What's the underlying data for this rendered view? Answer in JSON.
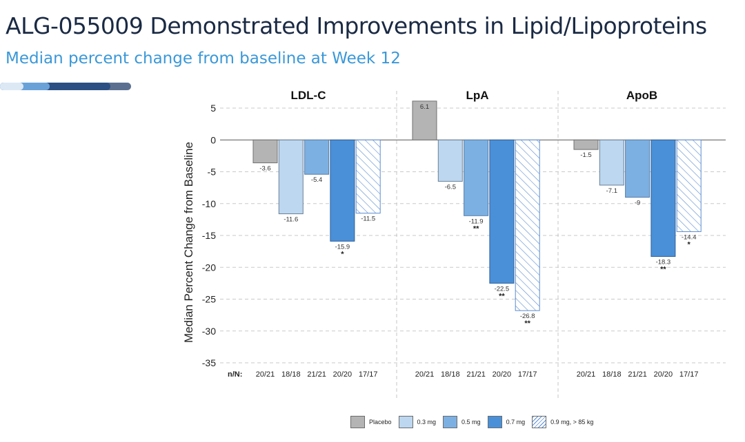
{
  "header": {
    "title": "ALG-055009 Demonstrated Improvements in Lipid/Lipoproteins",
    "subtitle": "Median percent change from baseline at Week 12"
  },
  "colors": {
    "placebo": "#b4b4b4",
    "dose_03": "#bcd7ef",
    "dose_05": "#7cb0e2",
    "dose_07": "#4a90d9",
    "hatch": "#5a8cd0",
    "title": "#1a2a44",
    "subtitle": "#3a98d8"
  },
  "chart_data": {
    "type": "bar",
    "ylabel": "Median Percent Change from Baseline",
    "ylim": [
      -35,
      5
    ],
    "yticks": [
      5,
      0,
      -5,
      -10,
      -15,
      -20,
      -25,
      -30,
      -35
    ],
    "grid": "horizontal dashed",
    "legend_position": "bottom",
    "nn_label": "n/N:",
    "series": [
      {
        "name": "Placebo",
        "color": "#b4b4b4",
        "pattern": "solid"
      },
      {
        "name": "0.3 mg",
        "color": "#bcd7ef",
        "pattern": "solid"
      },
      {
        "name": "0.5 mg",
        "color": "#7cb0e2",
        "pattern": "solid"
      },
      {
        "name": "0.7 mg",
        "color": "#4a90d9",
        "pattern": "solid"
      },
      {
        "name": "0.9 mg, > 85 kg",
        "color": "#ffffff",
        "pattern": "hatch"
      }
    ],
    "panels": [
      {
        "title": "LDL-C",
        "values": [
          -3.6,
          -11.6,
          -5.4,
          -15.9,
          -11.5
        ],
        "labels": [
          "-3.6",
          "-11.6",
          "-5.4",
          "-15.9",
          "-11.5"
        ],
        "significance": [
          "",
          "",
          "",
          "*",
          ""
        ],
        "nn": [
          "20/21",
          "18/18",
          "21/21",
          "20/20",
          "17/17"
        ]
      },
      {
        "title": "LpA",
        "values": [
          6.1,
          -6.5,
          -11.9,
          -22.5,
          -26.8
        ],
        "labels": [
          "6.1",
          "-6.5",
          "-11.9",
          "-22.5",
          "-26.8"
        ],
        "significance": [
          "",
          "",
          "**",
          "**",
          "**"
        ],
        "nn": [
          "20/21",
          "18/18",
          "21/21",
          "20/20",
          "17/17"
        ]
      },
      {
        "title": "ApoB",
        "values": [
          -1.5,
          -7.1,
          -9,
          -18.3,
          -14.4
        ],
        "labels": [
          "-1.5",
          "-7.1",
          "-9",
          "-18.3",
          "-14.4"
        ],
        "significance": [
          "",
          "",
          "",
          "**",
          "*"
        ],
        "nn": [
          "20/21",
          "18/18",
          "21/21",
          "20/20",
          "17/17"
        ]
      }
    ]
  }
}
